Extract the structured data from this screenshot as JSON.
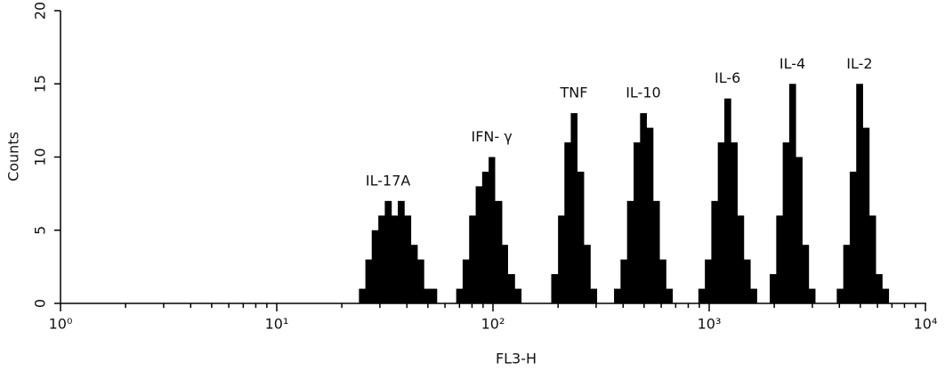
{
  "chart_data": {
    "type": "histogram",
    "x_label": "FL3-H",
    "y_label": "Counts",
    "x_scale": "log",
    "color": "#000000",
    "xlim": [
      1,
      10000
    ],
    "xticks": [
      {
        "value": 1,
        "label": "10⁰"
      },
      {
        "value": 10,
        "label": "10¹"
      },
      {
        "value": 100,
        "label": "10²"
      },
      {
        "value": 1000,
        "label": "10³"
      },
      {
        "value": 10000,
        "label": "10⁴"
      }
    ],
    "ylim": [
      0,
      20
    ],
    "yticks": [
      0,
      5,
      10,
      15,
      20
    ],
    "series": [
      {
        "name": "IL-17A",
        "bins": [
          24.0,
          25.7,
          27.5,
          29.5,
          31.6,
          33.9,
          36.3,
          38.9,
          41.7,
          44.7,
          47.9,
          51.3,
          55.0
        ],
        "counts": [
          1,
          3,
          5,
          6,
          7,
          6,
          7,
          6,
          4,
          3,
          1,
          1
        ]
      },
      {
        "name": "IFN- γ",
        "bins": [
          67.6,
          72.4,
          77.6,
          83.2,
          89.1,
          95.5,
          102,
          110,
          117,
          126,
          135
        ],
        "counts": [
          1,
          3,
          6,
          8,
          9,
          10,
          7,
          4,
          2,
          1
        ]
      },
      {
        "name": "TNF",
        "bins": [
          186,
          200,
          214,
          229,
          245,
          263,
          282,
          302
        ],
        "counts": [
          2,
          6,
          11,
          13,
          9,
          4,
          1
        ]
      },
      {
        "name": "IL-10",
        "bins": [
          363,
          389,
          417,
          447,
          479,
          513,
          550,
          589,
          631,
          676
        ],
        "counts": [
          1,
          3,
          7,
          11,
          13,
          12,
          7,
          3,
          1
        ]
      },
      {
        "name": "IL-6",
        "bins": [
          891,
          955,
          1023,
          1096,
          1175,
          1259,
          1349,
          1445,
          1549,
          1660
        ],
        "counts": [
          1,
          3,
          7,
          11,
          14,
          11,
          6,
          3,
          1
        ]
      },
      {
        "name": "IL-4",
        "bins": [
          1905,
          2042,
          2188,
          2344,
          2512,
          2692,
          2884,
          3090
        ],
        "counts": [
          2,
          6,
          11,
          15,
          10,
          4,
          1
        ]
      },
      {
        "name": "IL-2",
        "bins": [
          3890,
          4169,
          4467,
          4786,
          5129,
          5495,
          5888,
          6310,
          6761
        ],
        "counts": [
          1,
          4,
          9,
          15,
          12,
          6,
          2,
          1
        ]
      }
    ]
  }
}
